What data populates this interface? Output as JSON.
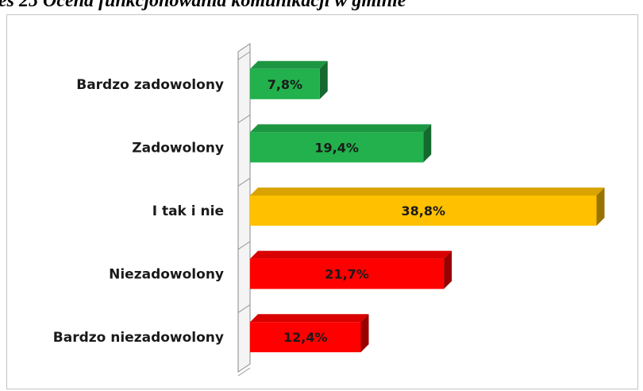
{
  "chart_data": {
    "type": "bar",
    "orientation": "horizontal",
    "title": "es 25 Ocena funkcjonowania komunikacji w gminie",
    "categories": [
      "Bardzo zadowolony",
      "Zadowolony",
      "I tak i nie",
      "Niezadowolony",
      "Bardzo niezadowolony"
    ],
    "values": [
      7.8,
      19.4,
      38.8,
      21.7,
      12.4
    ],
    "value_labels": [
      "7,8%",
      "19,4%",
      "38,8%",
      "21,7%",
      "12,4%"
    ],
    "colors": [
      "#22b14c",
      "#22b14c",
      "#ffc000",
      "#ff0000",
      "#ff0000"
    ],
    "xlim": [
      0,
      40
    ]
  }
}
